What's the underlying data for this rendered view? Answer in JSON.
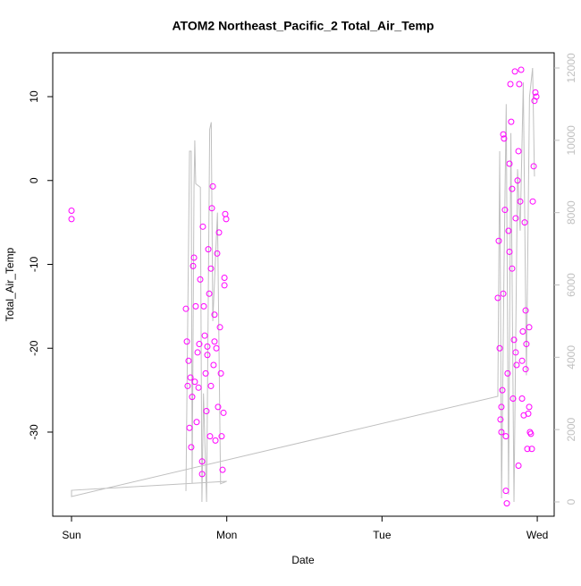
{
  "chart_data": {
    "type": "scatter",
    "title": "ATOM2 Northeast_Pacific_2 Total_Air_Temp",
    "xlabel": "Date",
    "ylabel": "Total_Air_Temp",
    "xlim": [
      -0.121,
      3.109
    ],
    "xticks": [
      {
        "value": 0,
        "label": "Sun"
      },
      {
        "value": 1,
        "label": "Mon"
      },
      {
        "value": 2,
        "label": "Tue"
      },
      {
        "value": 3,
        "label": "Wed"
      }
    ],
    "ylim": [
      -40.03,
      15.23
    ],
    "yticks": [
      -30,
      -20,
      -10,
      0,
      10
    ],
    "y2lim": [
      -396,
      12421
    ],
    "y2ticks": [
      0,
      2000,
      4000,
      6000,
      8000,
      10000,
      12000
    ],
    "series": [
      {
        "type": "scatter",
        "color": "#ff00ff",
        "x": [
          0,
          0,
          0.737,
          0.743,
          0.748,
          0.754,
          0.76,
          0.766,
          0.771,
          0.777,
          0.783,
          0.789,
          0.794,
          0.8,
          0.806,
          0.812,
          0.818,
          0.823,
          0.829,
          0.841,
          0.846,
          0.852,
          0.858,
          0.864,
          0.869,
          0.875,
          0.881,
          0.887,
          0.892,
          0.898,
          0.904,
          0.91,
          0.915,
          0.921,
          0.927,
          0.933,
          0.938,
          0.944,
          0.95,
          0.956,
          0.962,
          0.967,
          0.973,
          0.979,
          0.985,
          0.99,
          0.996,
          0.985,
          0.841,
          0.875,
          0.898,
          0.921,
          2.746,
          2.752,
          2.758,
          2.763,
          2.769,
          2.775,
          2.781,
          2.786,
          2.792,
          2.798,
          2.804,
          2.809,
          2.815,
          2.821,
          2.827,
          2.832,
          2.838,
          2.844,
          2.85,
          2.856,
          2.861,
          2.867,
          2.873,
          2.879,
          2.884,
          2.89,
          2.896,
          2.902,
          2.907,
          2.913,
          2.919,
          2.925,
          2.93,
          2.936,
          2.942,
          2.948,
          2.953,
          2.959,
          2.965,
          2.971,
          2.977,
          2.982,
          2.988,
          2.994,
          2.769,
          2.781,
          2.798,
          2.821,
          2.838,
          2.861,
          2.879,
          2.902,
          2.925,
          2.948
        ],
        "values": [
          -3.6,
          -4.6,
          -15.3,
          -19.2,
          -24.5,
          -21.5,
          -29.5,
          -23.5,
          -31.8,
          -25.8,
          -10.2,
          -9.2,
          -24,
          -15,
          -28.8,
          -20.5,
          -24.7,
          -19.5,
          -11.8,
          -33.5,
          -5.5,
          -15,
          -18.5,
          -23,
          -27.5,
          -19.8,
          -8.2,
          -13.5,
          -30.5,
          -10.5,
          -3.3,
          -0.7,
          -22,
          -16,
          -31,
          -20,
          -8.7,
          -27,
          -6.2,
          -17.5,
          -23,
          -30.5,
          -34.5,
          -27.7,
          -12.5,
          -4,
          -4.6,
          -11.6,
          -35,
          -20.8,
          -24.5,
          -19.2,
          -14,
          -7.2,
          -20,
          -28.5,
          -30,
          -25,
          5.5,
          5,
          -3.5,
          -37,
          -38.5,
          -23,
          -6,
          2,
          11.5,
          7,
          -10.5,
          -26,
          -19,
          13,
          -4.5,
          -22,
          0,
          -34,
          11.5,
          -2.5,
          13.2,
          -21.5,
          -18,
          -28,
          -5,
          -22.5,
          -19.5,
          -32,
          -27.8,
          -27,
          -30,
          -30.2,
          -32,
          -2.5,
          1.7,
          9.5,
          10.5,
          10,
          -27,
          -13.5,
          -30.5,
          -8.5,
          -1,
          -20.5,
          3.5,
          -26,
          -15.5,
          -17.5
        ]
      },
      {
        "type": "line",
        "axis": "y2",
        "color": "#c0c0c0",
        "x": [
          0.737,
          0.76,
          0.771,
          0.777,
          0.789,
          0.794,
          0.8,
          0.83,
          0.84,
          0.85,
          0.87,
          0.89,
          0.9,
          0.91,
          0.94,
          0.96,
          1.0,
          0,
          0,
          2.746,
          2.758,
          2.77,
          2.786,
          2.8,
          2.815,
          2.83,
          2.85,
          2.873,
          2.89,
          2.91,
          2.93,
          2.95,
          2.97,
          2.982
        ],
        "values": [
          300,
          9700,
          9700,
          500,
          8700,
          10000,
          8800,
          8700,
          0,
          3000,
          0,
          10300,
          10500,
          5000,
          8000,
          500,
          570,
          320,
          150,
          2920,
          9700,
          100,
          6500,
          11000,
          200,
          10200,
          0,
          9200,
          7500,
          11600,
          3500,
          11200,
          12000,
          9000
        ]
      }
    ]
  }
}
